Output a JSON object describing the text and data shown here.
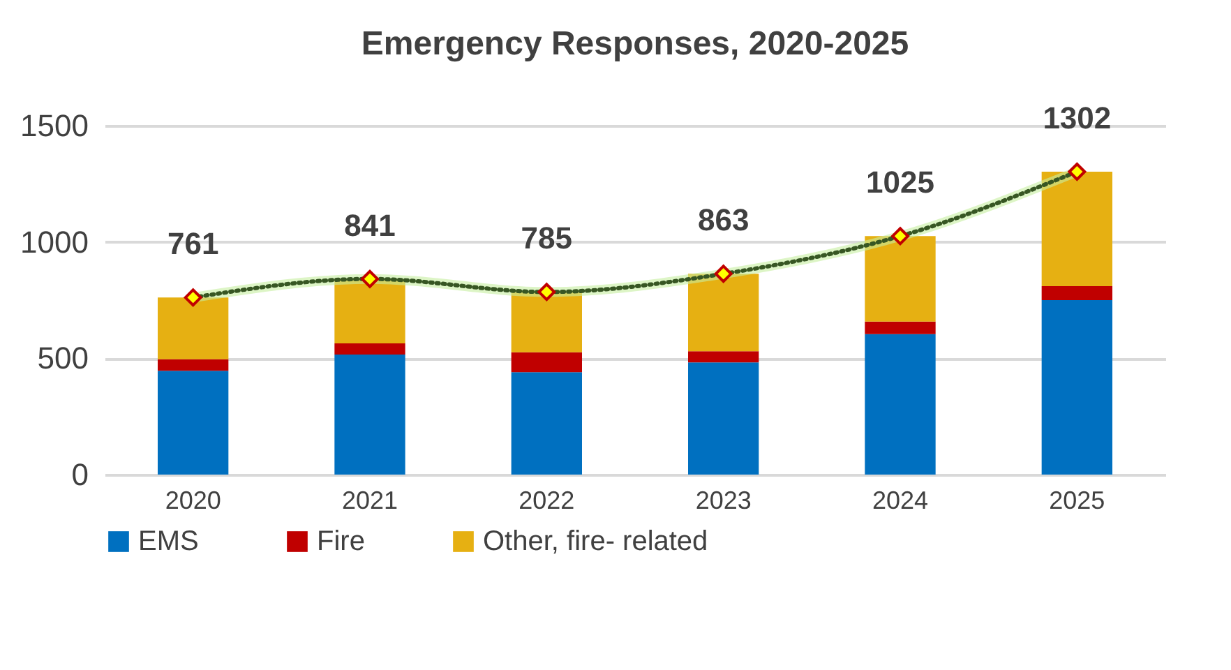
{
  "chart_data": {
    "type": "bar",
    "title": "Emergency Responses, 2020-2025",
    "categories": [
      "2020",
      "2021",
      "2022",
      "2023",
      "2024",
      "2025"
    ],
    "stacked": true,
    "series": [
      {
        "name": "EMS",
        "color": "#0070c0",
        "values": [
          446,
          516,
          440,
          482,
          604,
          750
        ]
      },
      {
        "name": "Fire",
        "color": "#c00000",
        "values": [
          50,
          48,
          86,
          48,
          54,
          60
        ]
      },
      {
        "name": "Other, fire- related",
        "color": "#e6b012",
        "values": [
          265,
          277,
          259,
          333,
          367,
          492
        ]
      },
      {
        "type": "line",
        "color": "#375623",
        "marker": "diamond",
        "line_style": "dotted",
        "values": [
          761,
          841,
          785,
          863,
          1025,
          1302
        ],
        "value_labels": [
          "761",
          "841",
          "785",
          "863",
          "1025",
          "1302"
        ]
      }
    ],
    "ylim": [
      0,
      1500
    ],
    "yticks": [
      0,
      500,
      1000,
      1500
    ],
    "grid": "y",
    "legend": "bottom"
  }
}
